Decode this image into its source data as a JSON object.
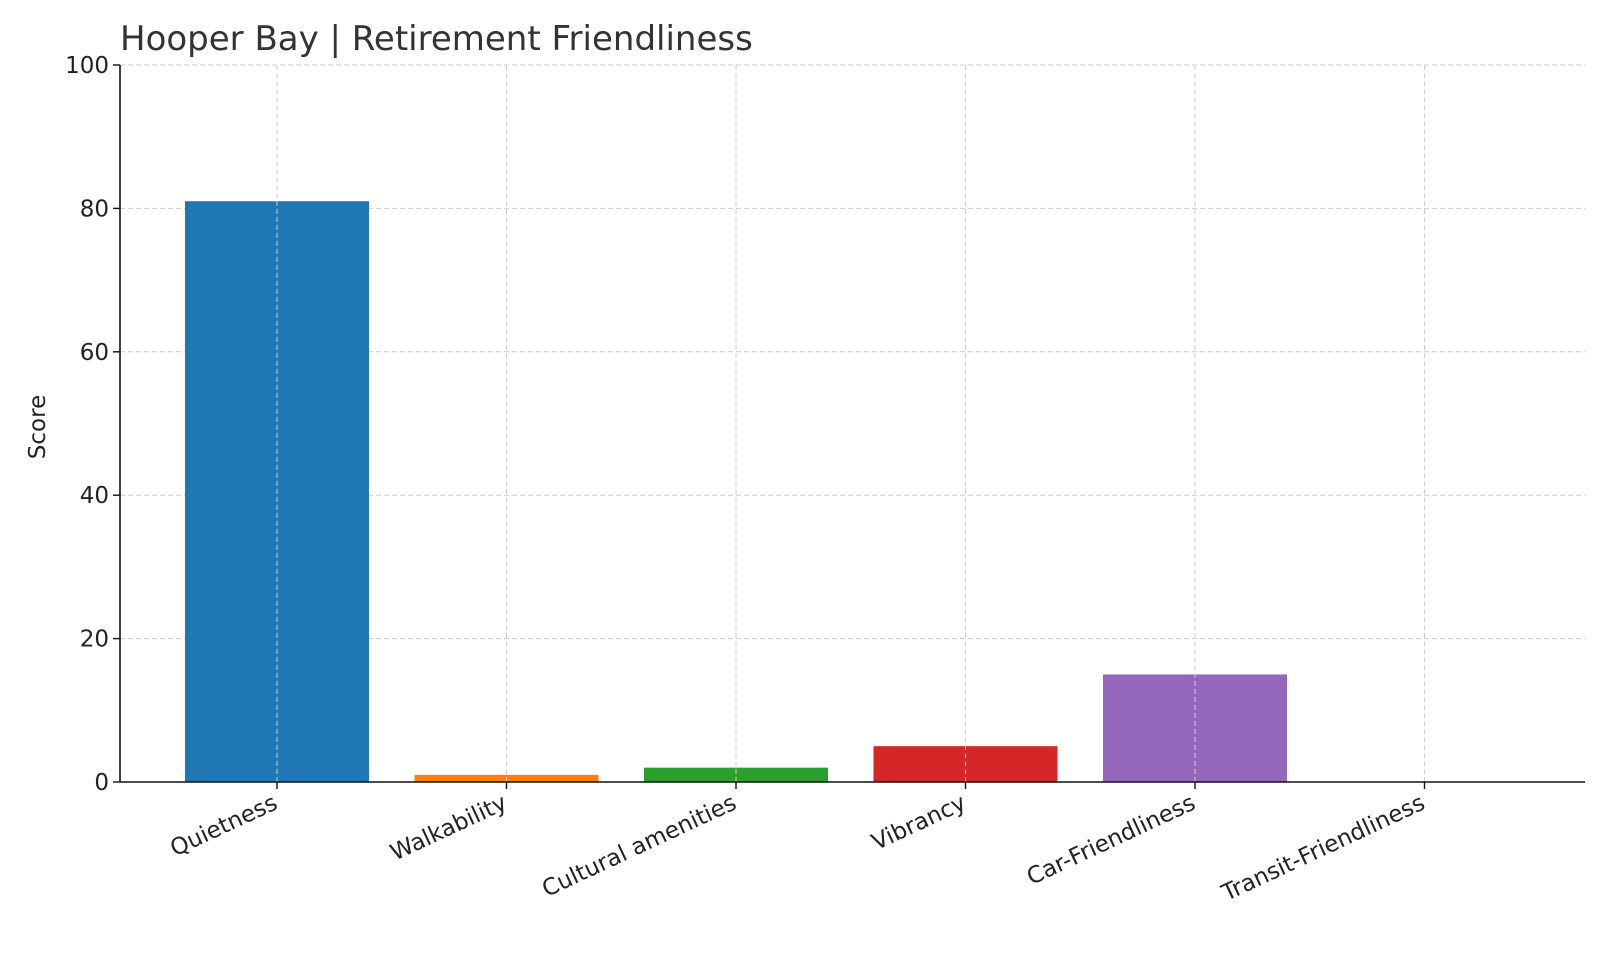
{
  "chart_data": {
    "type": "bar",
    "title": "Hooper Bay | Retirement Friendliness",
    "xlabel": "",
    "ylabel": "Score",
    "ylim": [
      0,
      100
    ],
    "yticks": [
      "0",
      "20",
      "40",
      "60",
      "80",
      "100"
    ],
    "categories": [
      "Quietness",
      "Walkability",
      "Cultural amenities",
      "Vibrancy",
      "Car-Friendliness",
      "Transit-Friendliness"
    ],
    "values": [
      81,
      1,
      2,
      5,
      15,
      0
    ],
    "colors": [
      "#1f77b4",
      "#ff7f0e",
      "#2ca02c",
      "#d62728",
      "#9467bd",
      "#8c564b"
    ],
    "grid": true,
    "legend": "none"
  }
}
